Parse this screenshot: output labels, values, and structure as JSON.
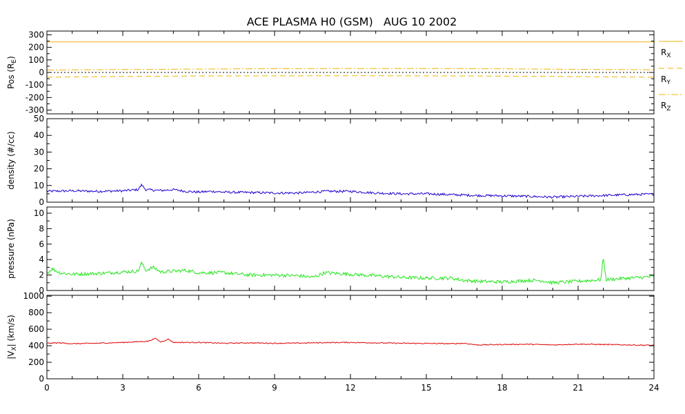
{
  "figure_title": "ACE PLASMA H0 (GSM)   AUG 10 2002",
  "chart_data": [
    {
      "type": "line",
      "id": "position",
      "ylabel": "Pos (R",
      "ylabel_sub": "E",
      "ylabel_end": ")",
      "xlim": [
        0,
        24
      ],
      "ylim": [
        -330,
        330
      ],
      "yticks": [
        300,
        200,
        100,
        0,
        -100,
        -200,
        -300
      ],
      "yticklabels": [
        "300",
        "200",
        "100",
        "0",
        "-100",
        "-200",
        "-300"
      ],
      "zero_line": true,
      "series": [
        {
          "name": "R",
          "sub": "X",
          "color": "#f0b400",
          "dash": "",
          "x": [
            0,
            24
          ],
          "values": [
            243,
            243
          ]
        },
        {
          "name": "R",
          "sub": "Y",
          "color": "#f0b400",
          "dash": "8,5",
          "x": [
            0,
            3,
            6,
            9,
            12,
            15,
            18,
            21,
            24
          ],
          "values": [
            -38,
            -32,
            -28,
            -27,
            -26,
            -27,
            -29,
            -33,
            -38
          ]
        },
        {
          "name": "R",
          "sub": "Z",
          "color": "#f0b400",
          "dash": "10,3,2,3",
          "x": [
            0,
            3,
            6,
            9,
            12,
            15,
            18,
            21,
            24
          ],
          "values": [
            19,
            23,
            27,
            30,
            32,
            32,
            29,
            25,
            21
          ]
        }
      ]
    },
    {
      "type": "line",
      "id": "density",
      "ylabel": "density (#/cc)",
      "xlim": [
        0,
        24
      ],
      "ylim": [
        0,
        50
      ],
      "yticks": [
        50,
        40,
        30,
        20,
        10,
        0
      ],
      "yticklabels": [
        "50",
        "40",
        "30",
        "20",
        "10",
        "0"
      ],
      "series": [
        {
          "name": "density",
          "color": "#1a00d0",
          "noise": 0.7,
          "x": [
            0,
            1,
            2,
            3,
            3.6,
            3.75,
            3.9,
            4.5,
            5,
            5.5,
            6,
            6.5,
            7,
            8,
            9,
            10,
            11,
            12,
            13,
            14,
            15,
            16,
            17,
            18,
            19,
            20,
            21,
            22,
            23,
            24
          ],
          "values": [
            6.5,
            6.8,
            6.5,
            6.8,
            7.5,
            10.5,
            7.5,
            7.0,
            7.5,
            6.5,
            6.0,
            6.5,
            6.0,
            5.8,
            5.5,
            5.5,
            6.5,
            6.5,
            5.5,
            5.0,
            5.0,
            4.5,
            4.0,
            3.8,
            3.5,
            3.0,
            3.5,
            4.0,
            4.5,
            4.8
          ]
        }
      ]
    },
    {
      "type": "line",
      "id": "pressure",
      "ylabel": "pressure (nPa)",
      "xlim": [
        0,
        24
      ],
      "ylim": [
        0,
        10.8
      ],
      "yticks": [
        10,
        8,
        6,
        4,
        2,
        0
      ],
      "yticklabels": [
        "10",
        "8",
        "6",
        "4",
        "2",
        "0"
      ],
      "series": [
        {
          "name": "pressure",
          "color": "#22e61a",
          "noise": 0.22,
          "x": [
            0,
            0.2,
            0.5,
            1,
            2,
            3,
            3.6,
            3.75,
            3.9,
            4.2,
            4.5,
            5,
            5.5,
            6,
            7,
            8,
            9,
            10,
            10.5,
            11,
            12,
            13,
            14,
            15,
            16,
            16.5,
            17,
            18,
            19,
            19.5,
            20,
            21,
            21.9,
            22.0,
            22.1,
            22.5,
            23,
            24
          ],
          "values": [
            2.2,
            2.8,
            2.3,
            2.1,
            2.2,
            2.4,
            2.5,
            3.6,
            2.6,
            3.0,
            2.4,
            2.5,
            2.6,
            2.3,
            2.3,
            2.0,
            2.0,
            1.9,
            1.7,
            2.3,
            2.1,
            1.9,
            1.7,
            1.6,
            1.6,
            1.3,
            1.2,
            1.1,
            1.3,
            1.3,
            1.0,
            1.2,
            1.4,
            4.4,
            1.4,
            1.5,
            1.6,
            1.8
          ]
        }
      ]
    },
    {
      "type": "line",
      "id": "velocity",
      "ylabel": "|V",
      "ylabel_sub": "X",
      "ylabel_end": "| (km/s)",
      "xlim": [
        0,
        24
      ],
      "ylim": [
        0,
        1010
      ],
      "yticks": [
        1000,
        800,
        600,
        400,
        200,
        0
      ],
      "yticklabels": [
        "1000",
        "800",
        "600",
        "400",
        "200",
        "0"
      ],
      "xticks": [
        0,
        3,
        6,
        9,
        12,
        15,
        18,
        21,
        24
      ],
      "xticklabels": [
        "0",
        "3",
        "6",
        "9",
        "12",
        "15",
        "18",
        "21",
        "24"
      ],
      "series": [
        {
          "name": "velocity",
          "color": "#e00000",
          "noise": 6,
          "x": [
            0,
            0.5,
            1,
            2,
            3,
            4,
            4.3,
            4.5,
            4.8,
            5,
            6,
            7,
            8,
            9,
            10,
            11,
            12,
            13,
            14,
            15,
            16,
            16.5,
            17,
            18,
            19,
            20,
            21,
            22,
            23,
            24
          ],
          "values": [
            430,
            435,
            425,
            430,
            440,
            455,
            490,
            445,
            480,
            440,
            440,
            430,
            435,
            430,
            432,
            438,
            440,
            435,
            430,
            428,
            425,
            430,
            410,
            415,
            418,
            410,
            420,
            415,
            410,
            405
          ]
        }
      ]
    }
  ]
}
